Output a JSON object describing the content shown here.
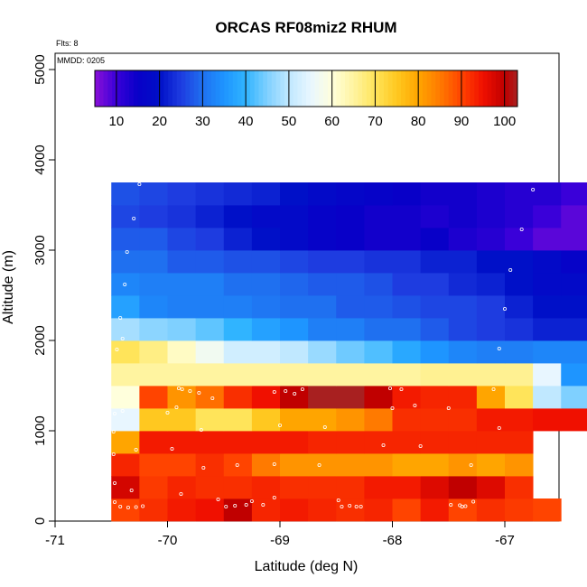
{
  "chart_data": {
    "type": "heatmap",
    "title": "ORCAS RF08miz2 RHUM",
    "xlabel": "Latitude (deg N)",
    "ylabel": "Altitude (m)",
    "flts_label": "Flts: 8",
    "mmdd_label": "MMDD: 0205",
    "xlim": [
      -71,
      -66.5
    ],
    "ylim": [
      0,
      5200
    ],
    "x_ticks": [
      -71,
      -70,
      -69,
      -68,
      -67
    ],
    "x_tick_labels": [
      "-71",
      "-70",
      "-69",
      "-68",
      "-67"
    ],
    "y_ticks": [
      0,
      1000,
      2000,
      3000,
      4000,
      5000
    ],
    "y_tick_labels": [
      "0",
      "1000",
      "2000",
      "3000",
      "4000",
      "5000"
    ],
    "colorbar": {
      "range": [
        5,
        103
      ],
      "ticks": [
        10,
        20,
        30,
        40,
        50,
        60,
        70,
        80,
        90,
        100
      ],
      "tick_labels": [
        "10",
        "20",
        "30",
        "40",
        "50",
        "60",
        "70",
        "80",
        "90",
        "100"
      ]
    },
    "cell_width_deg": 0.25,
    "cell_height_m": 250,
    "rows": [
      {
        "alt_bottom": 0,
        "x_start": -70.5,
        "values": [
          90,
          92,
          94,
          95,
          100,
          93,
          94,
          93,
          92,
          93,
          90,
          94,
          90,
          92,
          91,
          90
        ]
      },
      {
        "alt_bottom": 250,
        "x_start": -70.5,
        "values": [
          98,
          91,
          93,
          92,
          92,
          93,
          92,
          92,
          92,
          94,
          94,
          97,
          100,
          97,
          92
        ]
      },
      {
        "alt_bottom": 500,
        "x_start": -70.5,
        "values": [
          93,
          90,
          90,
          92,
          90,
          85,
          82,
          82,
          82,
          82,
          80,
          80,
          82,
          80,
          82
        ]
      },
      {
        "alt_bottom": 750,
        "x_start": -70.5,
        "values": [
          80,
          94,
          94,
          94,
          94,
          94,
          94,
          93,
          93,
          93,
          93,
          93,
          93,
          93,
          93
        ]
      },
      {
        "alt_bottom": 1000,
        "x_start": -70.5,
        "values": [
          55,
          75,
          75,
          70,
          70,
          75,
          80,
          80,
          82,
          85,
          92,
          92,
          92,
          94,
          94,
          95,
          95
        ]
      },
      {
        "alt_bottom": 1250,
        "x_start": -70.5,
        "values": [
          60,
          90,
          82,
          86,
          92,
          95,
          100,
          103,
          103,
          100,
          94,
          93,
          93,
          80,
          70,
          50,
          45
        ]
      },
      {
        "alt_bottom": 1500,
        "x_start": -70.5,
        "values": [
          65,
          65,
          65,
          65,
          65,
          65,
          65,
          65,
          65,
          65,
          65,
          66,
          66,
          66,
          66,
          55,
          35
        ]
      },
      {
        "alt_bottom": 1750,
        "x_start": -70.5,
        "values": [
          70,
          67,
          62,
          57,
          52,
          52,
          50,
          47,
          44,
          42,
          38,
          35,
          33,
          32,
          32,
          33,
          33
        ]
      },
      {
        "alt_bottom": 2000,
        "x_start": -70.5,
        "values": [
          48,
          46,
          45,
          43,
          40,
          37,
          35,
          32,
          32,
          30,
          30,
          28,
          26,
          25,
          24,
          22,
          22
        ]
      },
      {
        "alt_bottom": 2250,
        "x_start": -70.5,
        "values": [
          37,
          33,
          32,
          32,
          32,
          31,
          30,
          30,
          28,
          28,
          27,
          26,
          26,
          25,
          22,
          20,
          20
        ]
      },
      {
        "alt_bottom": 2500,
        "x_start": -70.5,
        "values": [
          33,
          32,
          32,
          32,
          30,
          30,
          29,
          28,
          28,
          27,
          25,
          25,
          23,
          22,
          20,
          18,
          18
        ]
      },
      {
        "alt_bottom": 2750,
        "x_start": -70.5,
        "values": [
          30,
          30,
          28,
          28,
          27,
          27,
          26,
          25,
          25,
          24,
          24,
          22,
          22,
          20,
          20,
          18,
          16,
          18,
          18
        ]
      },
      {
        "alt_bottom": 3000,
        "x_start": -70.5,
        "values": [
          28,
          28,
          26,
          25,
          22,
          20,
          18,
          16,
          15,
          14,
          14,
          15,
          13,
          12,
          10,
          8,
          8
        ]
      },
      {
        "alt_bottom": 3250,
        "x_start": -70.5,
        "values": [
          26,
          25,
          24,
          22,
          20,
          18,
          18,
          16,
          15,
          14,
          14,
          13,
          14,
          13,
          12,
          10,
          8,
          8
        ]
      },
      {
        "alt_bottom": 3500,
        "x_start": -70.5,
        "values": [
          27,
          26,
          25,
          24,
          23,
          22,
          20,
          18,
          17,
          16,
          15,
          14,
          14,
          13,
          12,
          12,
          10,
          10
        ]
      }
    ],
    "flight_points": [
      [
        -70.47,
        210
      ],
      [
        -70.42,
        160
      ],
      [
        -70.35,
        150
      ],
      [
        -70.28,
        155
      ],
      [
        -70.22,
        165
      ],
      [
        -69.88,
        300
      ],
      [
        -69.55,
        240
      ],
      [
        -69.48,
        160
      ],
      [
        -69.4,
        170
      ],
      [
        -69.3,
        180
      ],
      [
        -69.25,
        220
      ],
      [
        -69.15,
        180
      ],
      [
        -69.05,
        260
      ],
      [
        -68.48,
        230
      ],
      [
        -68.45,
        160
      ],
      [
        -68.38,
        170
      ],
      [
        -68.32,
        160
      ],
      [
        -68.28,
        160
      ],
      [
        -67.48,
        180
      ],
      [
        -67.4,
        175
      ],
      [
        -67.38,
        160
      ],
      [
        -67.35,
        165
      ],
      [
        -67.28,
        215
      ],
      [
        -70.47,
        420
      ],
      [
        -70.32,
        340
      ],
      [
        -69.38,
        620
      ],
      [
        -69.68,
        590
      ],
      [
        -68.65,
        620
      ],
      [
        -67.3,
        620
      ],
      [
        -70.48,
        740
      ],
      [
        -70.28,
        790
      ],
      [
        -69.96,
        800
      ],
      [
        -69.05,
        630
      ],
      [
        -68.08,
        840
      ],
      [
        -67.75,
        830
      ],
      [
        -70.48,
        990
      ],
      [
        -69.7,
        1010
      ],
      [
        -69.0,
        1060
      ],
      [
        -68.6,
        1040
      ],
      [
        -67.05,
        1030
      ],
      [
        -70.47,
        1190
      ],
      [
        -70.4,
        1220
      ],
      [
        -70.0,
        1200
      ],
      [
        -69.92,
        1260
      ],
      [
        -69.9,
        1470
      ],
      [
        -69.87,
        1460
      ],
      [
        -69.8,
        1440
      ],
      [
        -69.72,
        1420
      ],
      [
        -69.6,
        1360
      ],
      [
        -69.05,
        1430
      ],
      [
        -68.95,
        1440
      ],
      [
        -68.87,
        1410
      ],
      [
        -68.8,
        1460
      ],
      [
        -68.02,
        1470
      ],
      [
        -67.92,
        1460
      ],
      [
        -68.0,
        1250
      ],
      [
        -67.8,
        1280
      ],
      [
        -67.5,
        1250
      ],
      [
        -67.1,
        1460
      ],
      [
        -70.45,
        1900
      ],
      [
        -70.42,
        2250
      ],
      [
        -70.38,
        2620
      ],
      [
        -70.36,
        2980
      ],
      [
        -70.3,
        3350
      ],
      [
        -70.25,
        3730
      ],
      [
        -66.85,
        3230
      ],
      [
        -66.75,
        3670
      ],
      [
        -66.95,
        2780
      ],
      [
        -67.0,
        2350
      ],
      [
        -67.05,
        1910
      ],
      [
        -70.4,
        2020
      ]
    ]
  }
}
